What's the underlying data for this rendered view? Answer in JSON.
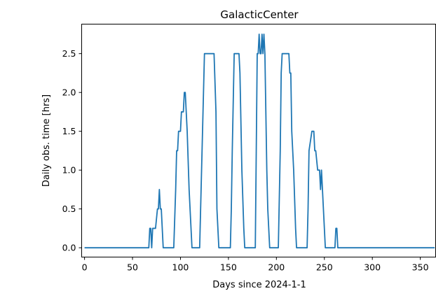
{
  "chart_data": {
    "type": "line",
    "title": "GalacticCenter",
    "xlabel": "Days since 2024-1-1",
    "ylabel": "Daily obs. time [hrs]",
    "xlim": [
      -3,
      366
    ],
    "ylim": [
      -0.12,
      2.88
    ],
    "xticks": [
      0,
      50,
      100,
      150,
      200,
      250,
      300,
      350
    ],
    "yticks": [
      0.0,
      0.5,
      1.0,
      1.5,
      2.0,
      2.5
    ],
    "ytick_labels": [
      "0.0",
      "0.5",
      "1.0",
      "1.5",
      "2.0",
      "2.5"
    ],
    "grid": false,
    "line_color": "#1f77b4",
    "series": [
      {
        "x": [
          0,
          67,
          68,
          69,
          70,
          71,
          72,
          74,
          76,
          77,
          78,
          79,
          80,
          82,
          84,
          93,
          95,
          96,
          97,
          98,
          100,
          101,
          103,
          104,
          105,
          106,
          107,
          109,
          112,
          114,
          120,
          122,
          124,
          125,
          126,
          127,
          129,
          133,
          135,
          137,
          138,
          140,
          141,
          142,
          148,
          152,
          153,
          154,
          156,
          160,
          161,
          162,
          164,
          166,
          167,
          176,
          178,
          179,
          180,
          181,
          182,
          183,
          184,
          185,
          186,
          187,
          188,
          189,
          190,
          191,
          193,
          195,
          196,
          202,
          204,
          205,
          206,
          208,
          212,
          213,
          214,
          215,
          216,
          218,
          220,
          221,
          230,
          232,
          233,
          234,
          237,
          238,
          239,
          240,
          241,
          243,
          244,
          245,
          246,
          247,
          249,
          251,
          252,
          260,
          261,
          262,
          263,
          264,
          365
        ],
        "y": [
          0,
          0,
          0.25,
          0.25,
          0,
          0.25,
          0.25,
          0.25,
          0.5,
          0.5,
          0.75,
          0.5,
          0.5,
          0,
          0,
          0,
          0.75,
          1.25,
          1.25,
          1.5,
          1.5,
          1.75,
          1.75,
          2.0,
          2.0,
          1.75,
          1.5,
          0.75,
          0,
          0,
          0,
          1.0,
          2.0,
          2.5,
          2.5,
          2.5,
          2.5,
          2.5,
          2.5,
          1.75,
          0.5,
          0,
          0,
          0,
          0,
          0,
          0.5,
          1.25,
          2.5,
          2.5,
          2.5,
          2.25,
          1.0,
          0.25,
          0,
          0,
          0,
          1.25,
          2.5,
          2.5,
          2.75,
          2.5,
          2.5,
          2.75,
          2.5,
          2.75,
          2.5,
          1.75,
          1.0,
          0.5,
          0,
          0,
          0,
          0,
          1.25,
          2.25,
          2.5,
          2.5,
          2.5,
          2.5,
          2.25,
          2.25,
          1.5,
          1.0,
          0.25,
          0,
          0,
          0,
          0.5,
          1.25,
          1.5,
          1.5,
          1.5,
          1.25,
          1.25,
          1.0,
          1.0,
          1.0,
          0.75,
          1.0,
          0.5,
          0,
          0,
          0,
          0,
          0.25,
          0.25,
          0,
          0
        ]
      }
    ]
  }
}
